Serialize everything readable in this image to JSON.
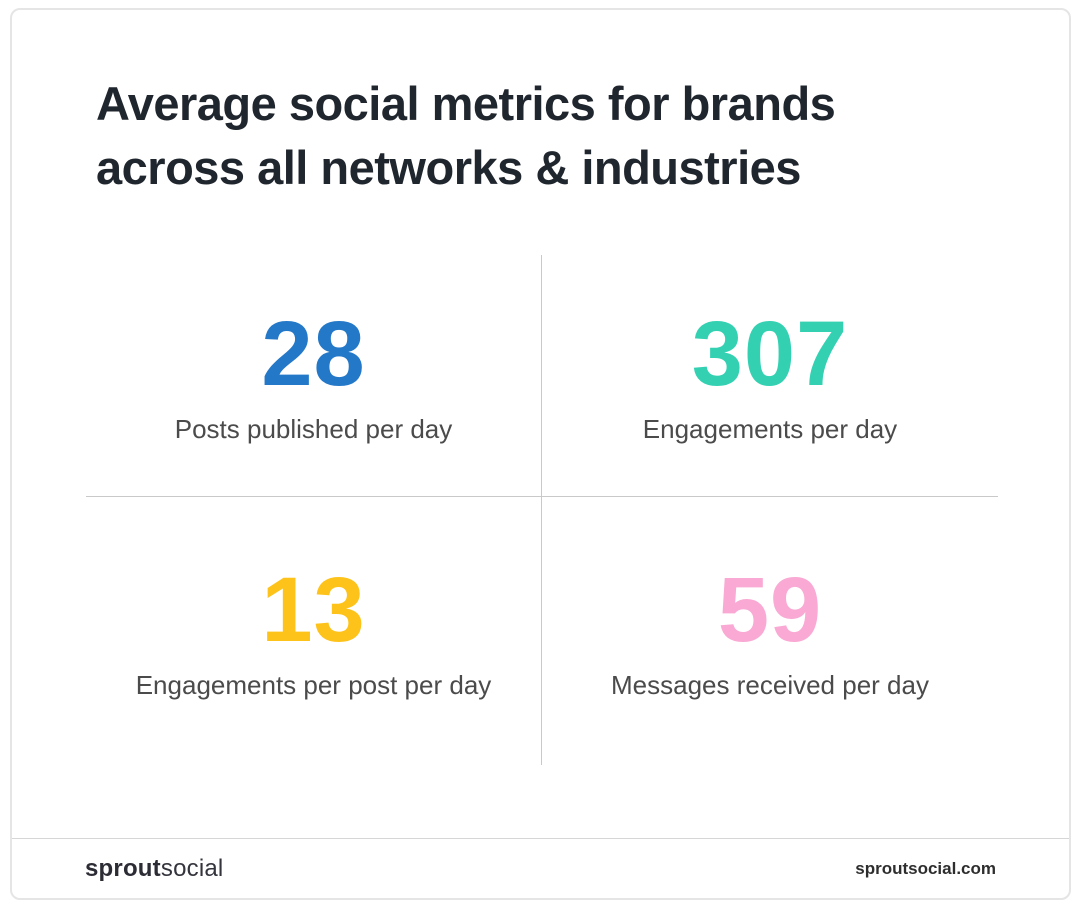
{
  "title": "Average social metrics for brands across all networks & industries",
  "metrics": [
    {
      "value": "28",
      "label": "Posts published per day",
      "color": "#2478c8"
    },
    {
      "value": "307",
      "label": "Engagements per day",
      "color": "#33d1b2"
    },
    {
      "value": "13",
      "label": "Engagements per post per day",
      "color": "#fdc31b"
    },
    {
      "value": "59",
      "label": "Messages received per day",
      "color": "#f9a9d3"
    }
  ],
  "footer": {
    "brand_bold": "sprout",
    "brand_light": "social",
    "website": "sproutsocial.com"
  },
  "colors": {
    "title_text": "#20262e",
    "label_text": "#4b4b4b",
    "divider": "#c9c9c9",
    "card_border": "#e5e5e5"
  },
  "chart_data": {
    "type": "table",
    "title": "Average social metrics for brands across all networks & industries",
    "categories": [
      "Posts published per day",
      "Engagements per day",
      "Engagements per post per day",
      "Messages received per day"
    ],
    "values": [
      28,
      307,
      13,
      59
    ],
    "value_colors": [
      "#2478c8",
      "#33d1b2",
      "#fdc31b",
      "#f9a9d3"
    ],
    "source": "sproutsocial.com"
  }
}
